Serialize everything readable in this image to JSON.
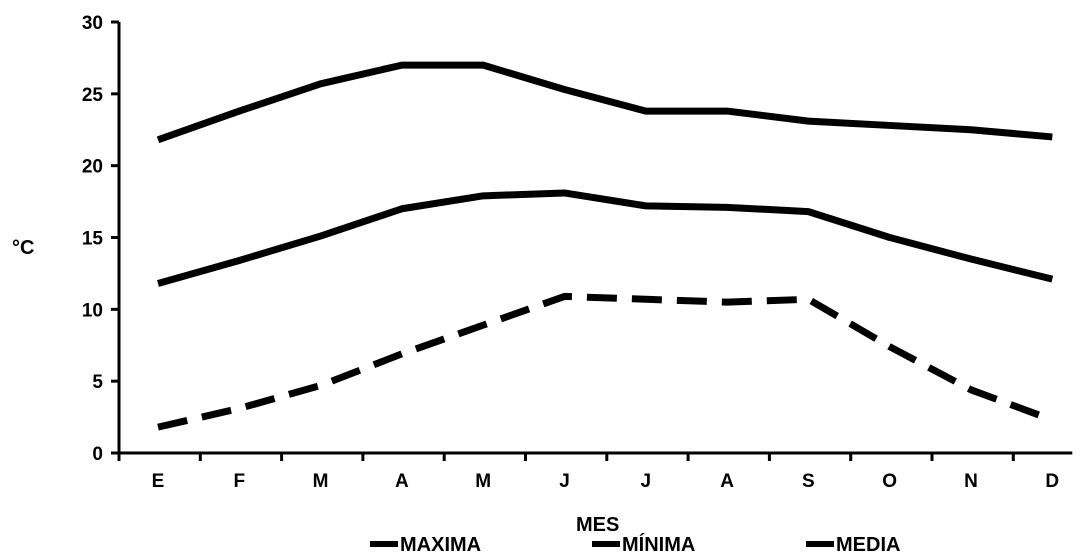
{
  "chart_data": {
    "type": "line",
    "categories": [
      "E",
      "F",
      "M",
      "A",
      "M",
      "J",
      "J",
      "A",
      "S",
      "O",
      "N",
      "D"
    ],
    "series": [
      {
        "name": "MAXIMA",
        "style": "solid",
        "values": [
          21.8,
          23.8,
          25.7,
          27.0,
          27.0,
          25.3,
          23.8,
          23.8,
          23.1,
          22.8,
          22.5,
          22.0
        ]
      },
      {
        "name": "MÍNIMA",
        "style": "solid",
        "values": [
          11.8,
          13.4,
          15.1,
          17.0,
          17.9,
          18.1,
          17.2,
          17.1,
          16.8,
          15.0,
          13.5,
          12.1
        ]
      },
      {
        "name": "MEDIA",
        "style": "dashed",
        "values": [
          1.8,
          3.1,
          4.7,
          6.9,
          8.9,
          10.9,
          10.7,
          10.5,
          10.7,
          7.4,
          4.4,
          2.3
        ]
      }
    ],
    "yticks": [
      0,
      5,
      10,
      15,
      20,
      25,
      30
    ],
    "ylim": [
      0,
      30
    ],
    "xlabel": "MES",
    "ylabel": "°C",
    "title": "",
    "grid": false,
    "legend_position": "bottom",
    "line_color": "#000000"
  }
}
